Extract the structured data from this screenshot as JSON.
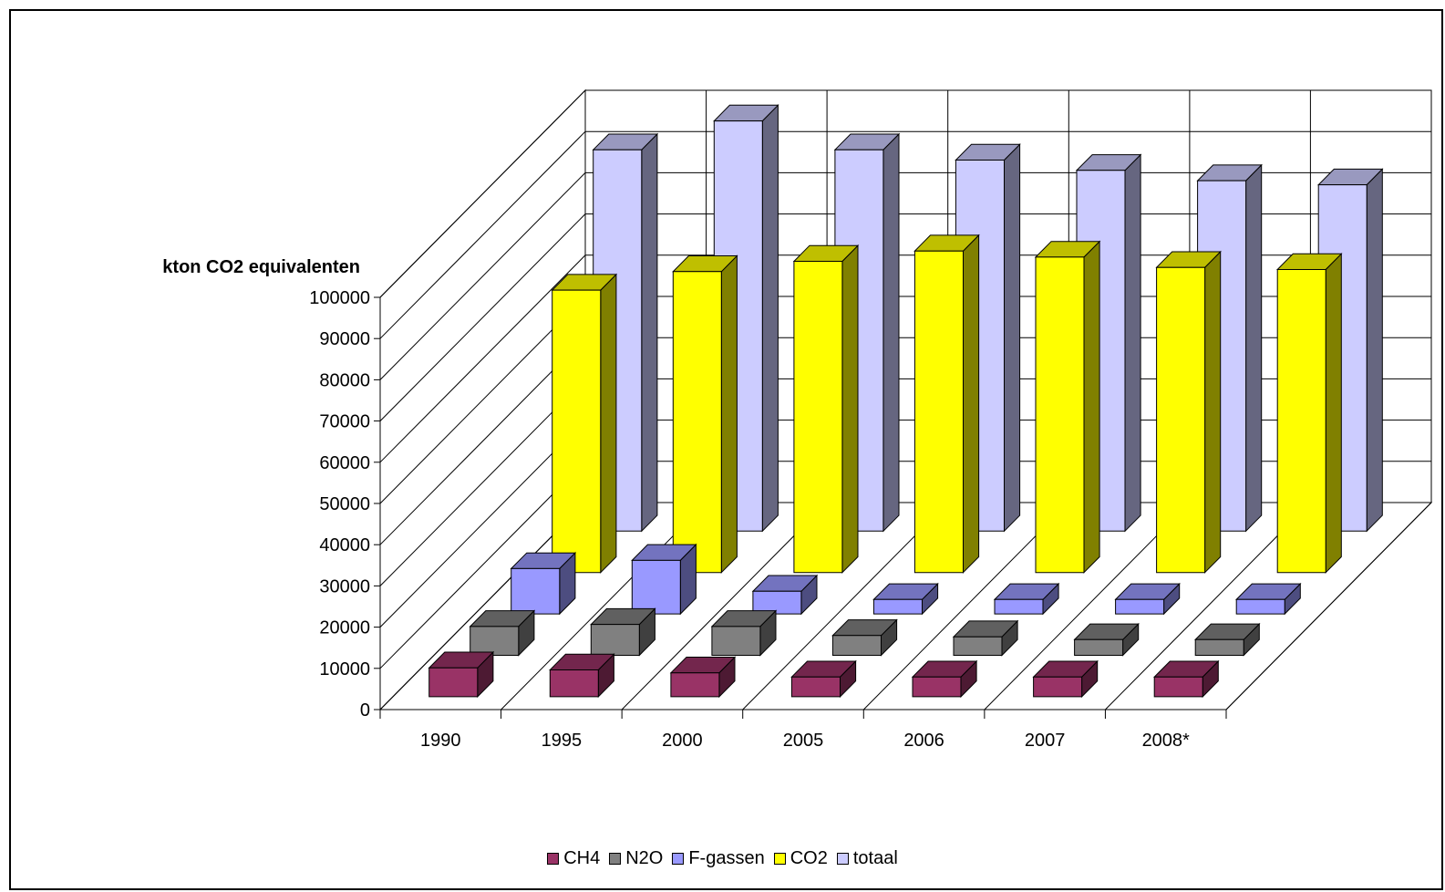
{
  "chart_data": {
    "type": "bar",
    "variant": "3d-column",
    "ylabel": "kton CO2 equivalenten",
    "categories": [
      "1990",
      "1995",
      "2000",
      "2005",
      "2006",
      "2007",
      "2008*"
    ],
    "ylim": [
      0,
      100000
    ],
    "yticks": [
      "0",
      "10000",
      "20000",
      "30000",
      "40000",
      "50000",
      "60000",
      "70000",
      "80000",
      "90000",
      "100000"
    ],
    "series": [
      {
        "name": "CH4",
        "color": "#993366",
        "values": [
          7000,
          6500,
          5800,
          4800,
          4800,
          4800,
          4800
        ]
      },
      {
        "name": "N2O",
        "color": "#808080",
        "values": [
          7000,
          7500,
          7000,
          4800,
          4500,
          3800,
          3800
        ]
      },
      {
        "name": "F-gassen",
        "color": "#9999FF",
        "values": [
          11000,
          13000,
          5500,
          3500,
          3500,
          3500,
          3500
        ]
      },
      {
        "name": "CO2",
        "color": "#FFFF00",
        "values": [
          68500,
          73000,
          75500,
          78000,
          76500,
          74000,
          73500
        ]
      },
      {
        "name": "totaal",
        "color": "#CCCCFF",
        "values": [
          92500,
          99500,
          92500,
          90000,
          87500,
          85000,
          84000
        ]
      }
    ],
    "grid": true,
    "legend_position": "bottom"
  }
}
